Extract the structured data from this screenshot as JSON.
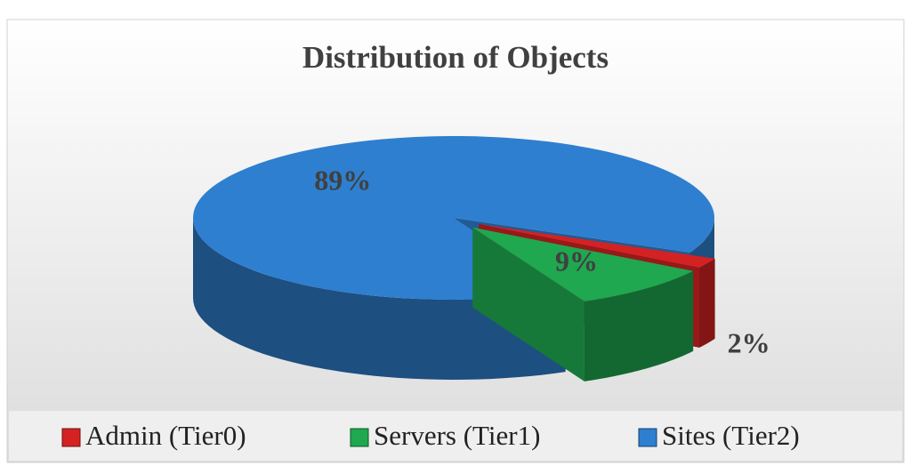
{
  "chart_data": {
    "type": "pie",
    "title": "Distribution of Objects",
    "categories": [
      "Admin (Tier0)",
      "Servers (Tier1)",
      "Sites (Tier2)"
    ],
    "values": [
      2,
      9,
      89
    ],
    "value_labels": [
      "2%",
      "9%",
      "89%"
    ],
    "colors": [
      "#d42222",
      "#1fa84f",
      "#2e7fcf"
    ]
  }
}
